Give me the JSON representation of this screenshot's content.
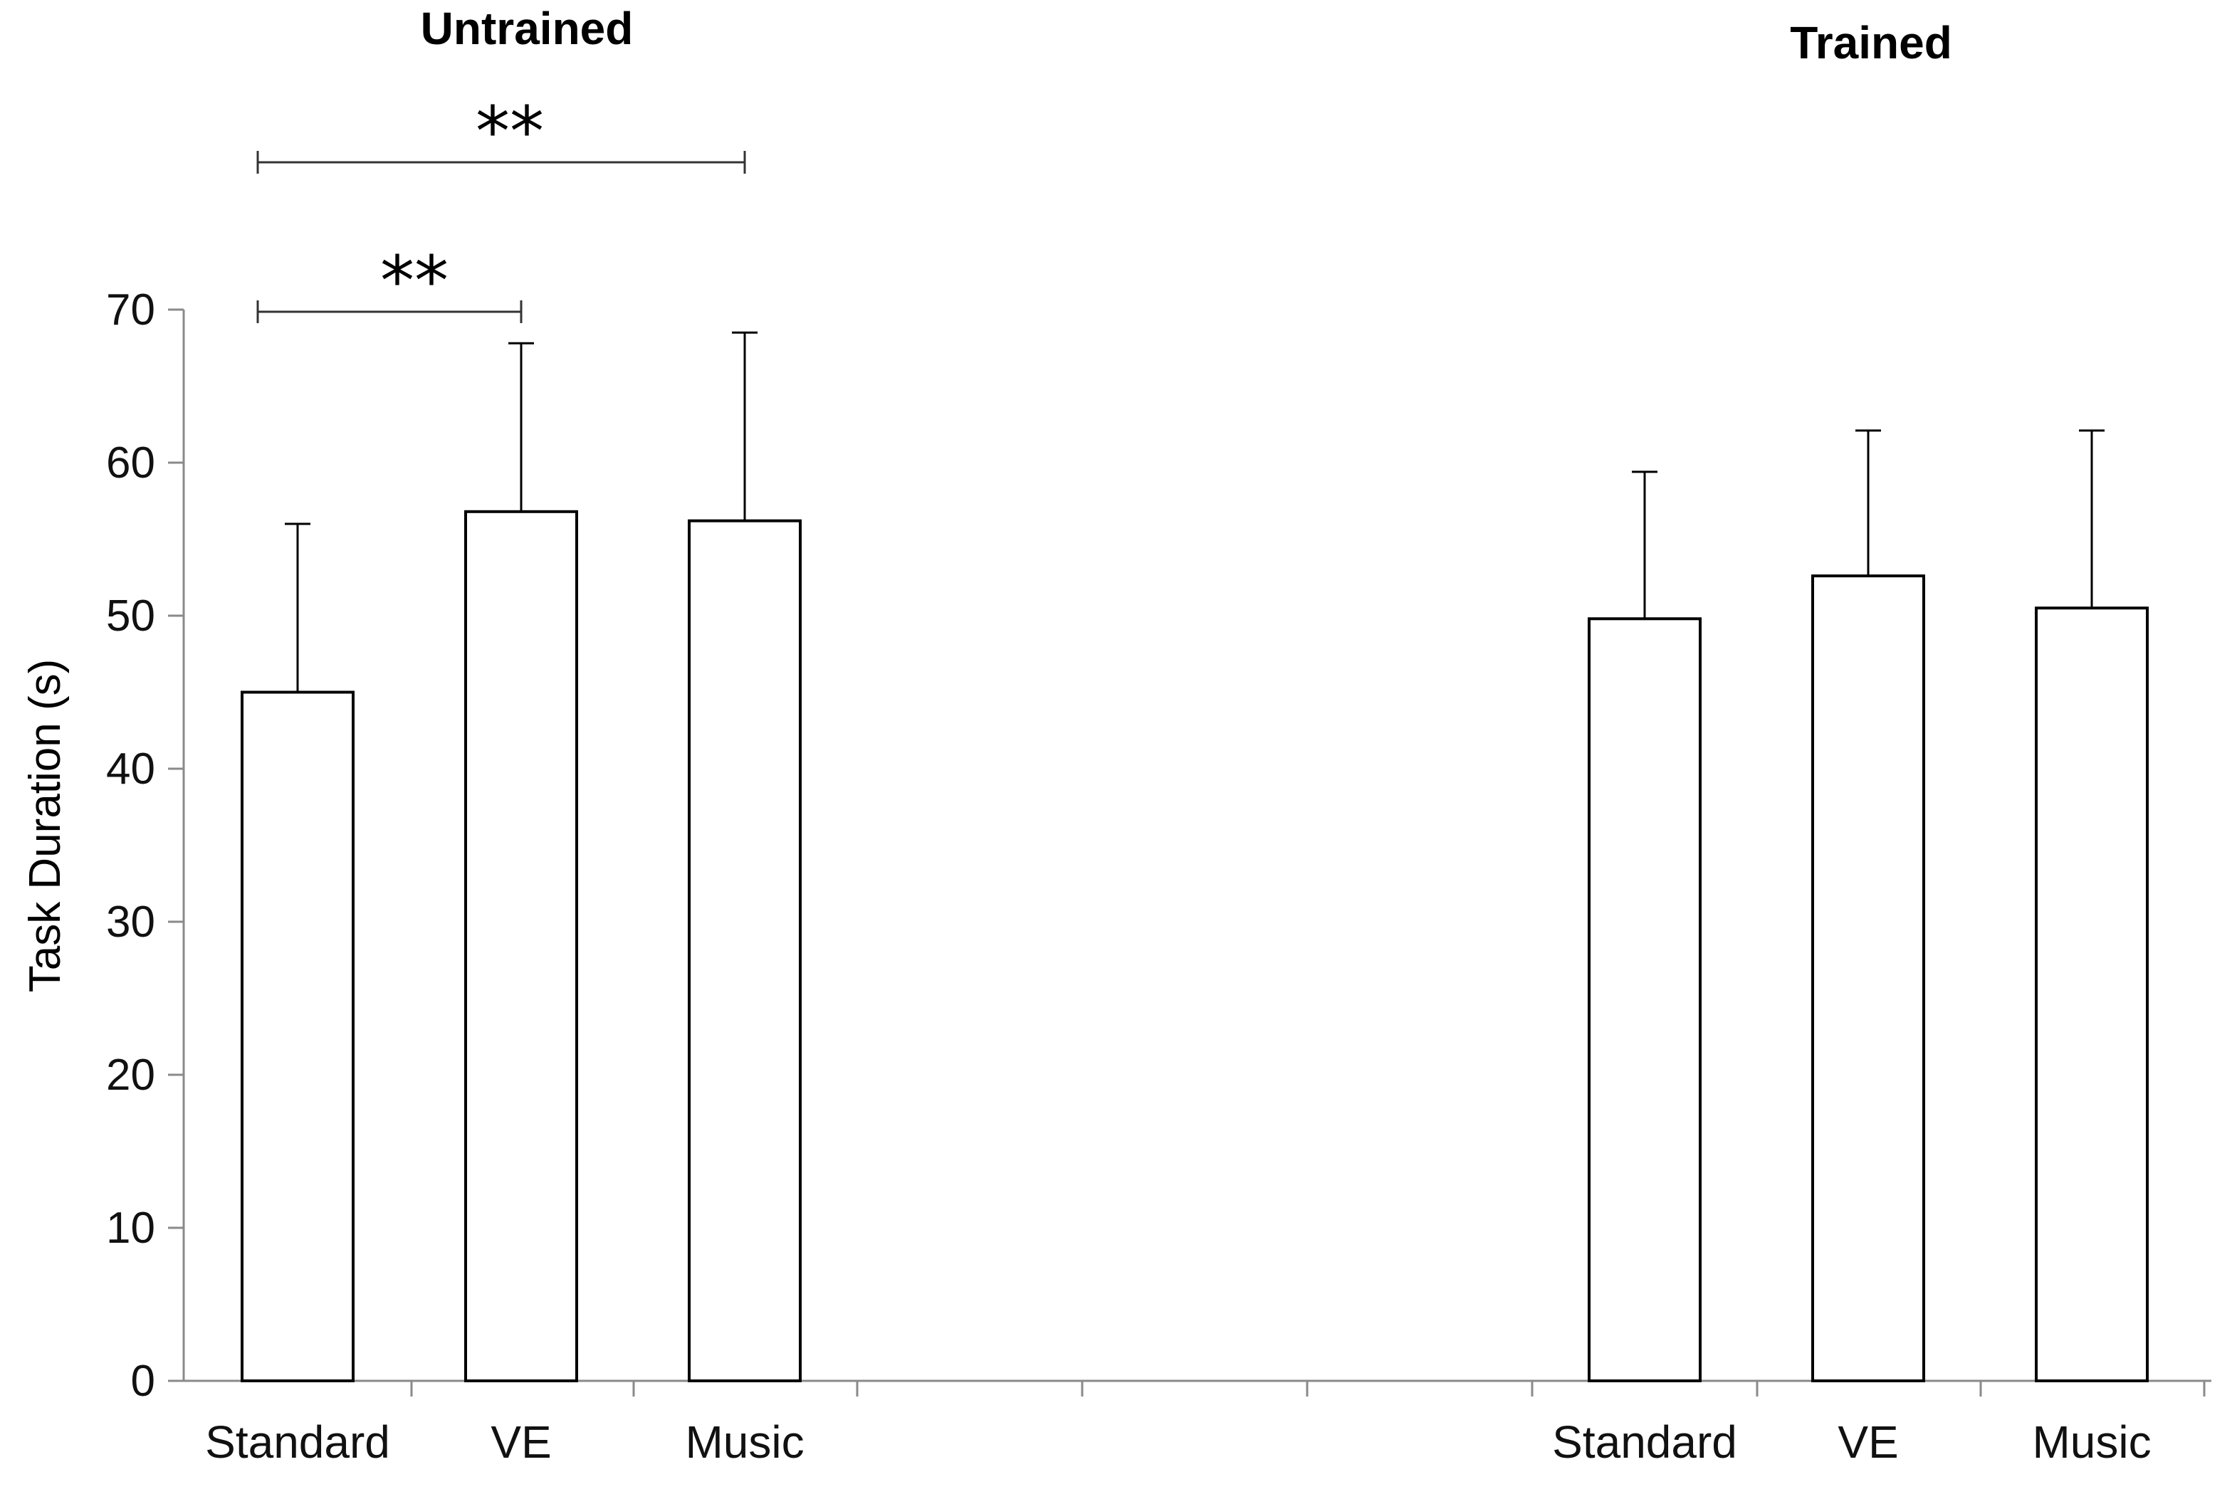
{
  "chart_data": {
    "type": "bar",
    "ylabel": "Task Duration (s)",
    "ylim": [
      0,
      70
    ],
    "yticks": [
      0,
      10,
      20,
      30,
      40,
      50,
      60,
      70
    ],
    "grid": false,
    "bar_fill": "#ffffff",
    "bar_stroke": "#000000",
    "groups": [
      {
        "title": "Untrained",
        "categories": [
          "Standard",
          "VE",
          "Music"
        ],
        "values": [
          45.0,
          56.8,
          56.2
        ],
        "error_upper": [
          11.0,
          11.0,
          12.3
        ]
      },
      {
        "title": "Trained",
        "categories": [
          "Standard",
          "VE",
          "Music"
        ],
        "values": [
          49.8,
          52.6,
          50.5
        ],
        "error_upper": [
          9.6,
          9.5,
          11.6
        ]
      }
    ],
    "significance": [
      {
        "group": 0,
        "from": 0,
        "to": 2,
        "label": "**"
      },
      {
        "group": 0,
        "from": 0,
        "to": 1,
        "label": "**"
      }
    ]
  }
}
